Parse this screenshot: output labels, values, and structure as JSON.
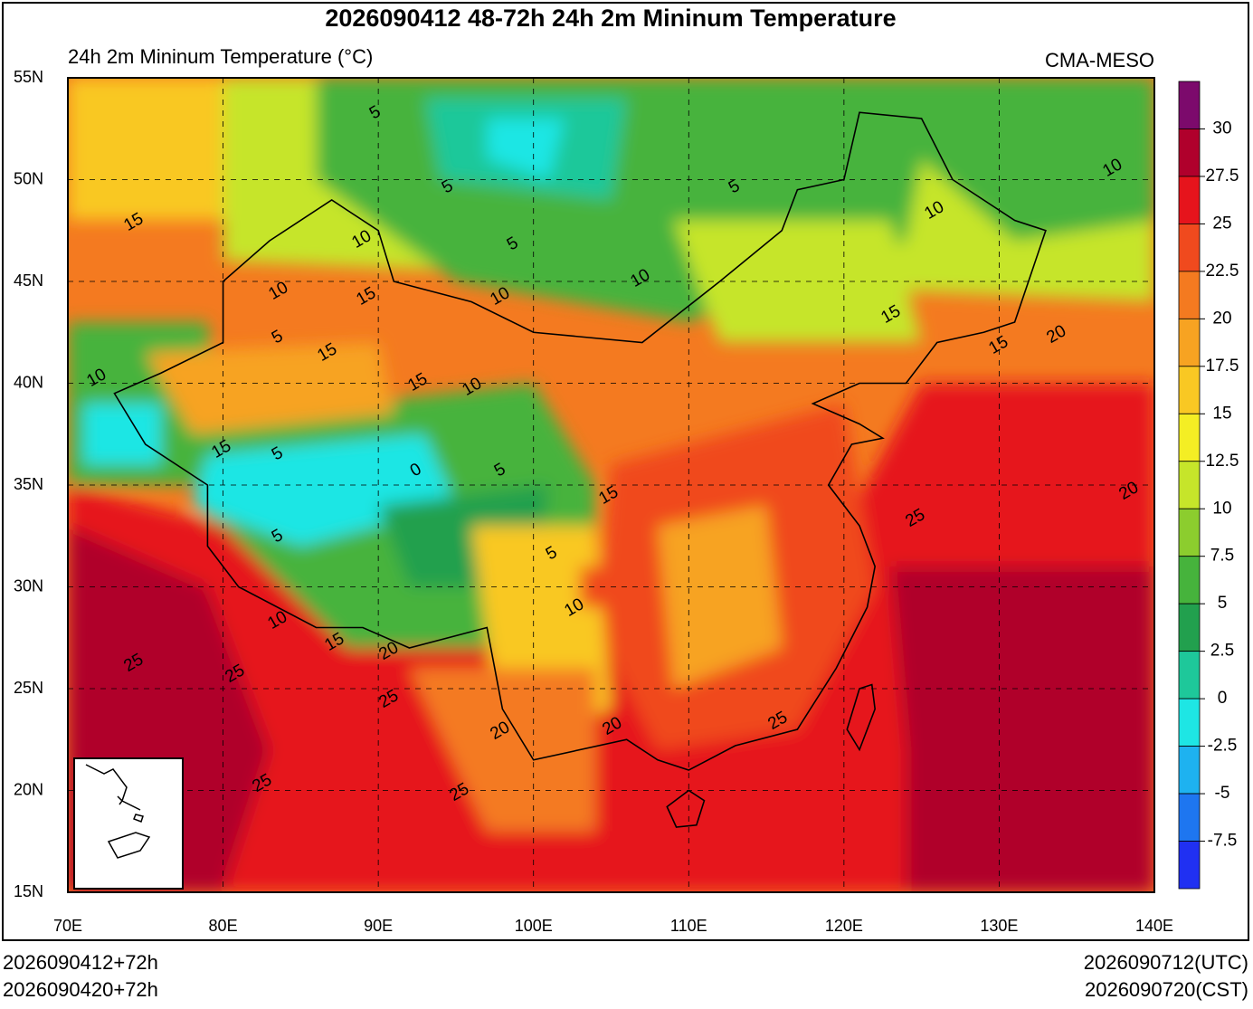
{
  "header": {
    "title": "2026090412 48-72h 24h 2m Mininum Temperature",
    "subtitle": "24h 2m Mininum Temperature (°C)",
    "source": "CMA-MESO"
  },
  "map": {
    "lat_ticks": [
      {
        "value": 55,
        "label": "55N"
      },
      {
        "value": 50,
        "label": "50N"
      },
      {
        "value": 45,
        "label": "45N"
      },
      {
        "value": 40,
        "label": "40N"
      },
      {
        "value": 35,
        "label": "35N"
      },
      {
        "value": 30,
        "label": "30N"
      },
      {
        "value": 25,
        "label": "25N"
      },
      {
        "value": 20,
        "label": "20N"
      },
      {
        "value": 15,
        "label": "15N"
      }
    ],
    "lon_ticks": [
      {
        "value": 70,
        "label": "70E"
      },
      {
        "value": 80,
        "label": "80E"
      },
      {
        "value": 90,
        "label": "90E"
      },
      {
        "value": 100,
        "label": "100E"
      },
      {
        "value": 110,
        "label": "110E"
      },
      {
        "value": 120,
        "label": "120E"
      },
      {
        "value": 130,
        "label": "130E"
      },
      {
        "value": 140,
        "label": "140E"
      }
    ],
    "contour_labels": [
      5,
      5,
      5,
      5,
      15,
      10,
      10,
      15,
      10,
      10,
      5,
      15,
      10,
      15,
      10,
      15,
      5,
      0,
      5,
      15,
      5,
      5,
      10,
      10,
      15,
      20,
      25,
      25,
      25,
      20,
      20,
      25,
      25,
      25,
      25,
      20,
      20,
      15,
      15,
      10,
      10
    ]
  },
  "colorbar": {
    "levels": [
      30,
      27.5,
      25,
      22.5,
      20,
      17.5,
      15,
      12.5,
      10,
      7.5,
      5,
      2.5,
      0,
      -2.5,
      -5,
      -7.5
    ],
    "colors": [
      "#7c0a6c",
      "#b0002c",
      "#e6141c",
      "#f04a1e",
      "#f47a20",
      "#f7a322",
      "#f9c823",
      "#f4ee24",
      "#c6e52a",
      "#8ccd2e",
      "#46b33c",
      "#22a04e",
      "#1ec89a",
      "#1ee6e4",
      "#1eb2f0",
      "#1e76f0",
      "#2030f2"
    ]
  },
  "footer": {
    "init_utc": "2026090412+72h",
    "init_cst": "2026090420+72h",
    "valid_utc": "2026090712(UTC)",
    "valid_cst": "2026090720(CST)"
  }
}
